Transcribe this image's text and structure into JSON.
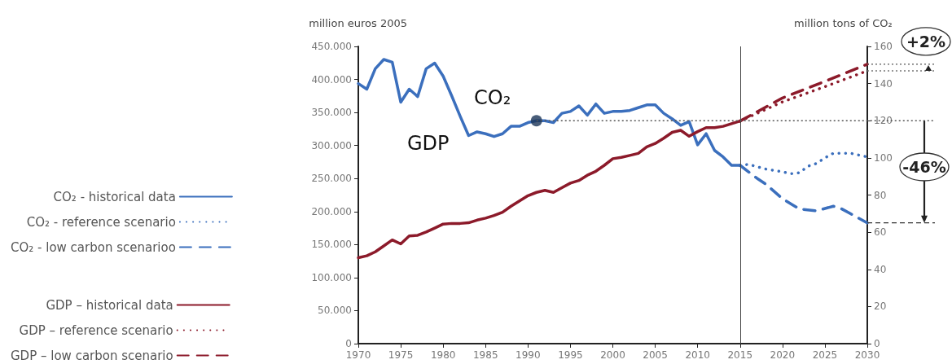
{
  "chart_data": {
    "type": "line",
    "ylabel": "million euros 2005",
    "y2label": "million tons of CO₂",
    "xlim": [
      1970,
      2030
    ],
    "xticks": [
      1970,
      1975,
      1980,
      1985,
      1990,
      1995,
      2000,
      2005,
      2010,
      2015,
      2020,
      2025,
      2030
    ],
    "ylim": [
      0,
      450000
    ],
    "yticks": [
      0,
      {
        "value": 50000,
        "label": "50.000"
      },
      {
        "value": 100000,
        "label": "100.000"
      },
      {
        "value": 150000,
        "label": "150.000"
      },
      {
        "value": 200000,
        "label": "200.000"
      },
      {
        "value": 250000,
        "label": "250.000"
      },
      {
        "value": 300000,
        "label": "300.000"
      },
      {
        "value": 350000,
        "label": "350.000"
      },
      {
        "value": 400000,
        "label": "400.000"
      },
      {
        "value": 450000,
        "label": "450.000"
      }
    ],
    "y2lim": [
      0,
      160
    ],
    "y2ticks": [
      0,
      20,
      40,
      60,
      80,
      100,
      120,
      140,
      160
    ],
    "grid": false,
    "legend": "left",
    "marker": "none",
    "series": [
      {
        "name": "CO₂ - historical data",
        "color": "#3b6fbd",
        "axis": "y2",
        "line_style": "solid",
        "x": [
          1970,
          1971,
          1972,
          1973,
          1974,
          1975,
          1976,
          1977,
          1978,
          1979,
          1980,
          1981,
          1982,
          1983,
          1984,
          1985,
          1986,
          1987,
          1988,
          1989,
          1990,
          1991,
          1992,
          1993,
          1994,
          1995,
          1996,
          1997,
          1998,
          1999,
          2000,
          2001,
          2002,
          2003,
          2004,
          2005,
          2006,
          2007,
          2008,
          2009,
          2010,
          2011,
          2012,
          2013,
          2014,
          2015
        ],
        "values": [
          140,
          137,
          148,
          153,
          151.5,
          130,
          137,
          133,
          148,
          151,
          144,
          133.5,
          122.5,
          112,
          114,
          113,
          111.5,
          113,
          117,
          117,
          119,
          120,
          120,
          119,
          124,
          125,
          128,
          123,
          129,
          124,
          125,
          125,
          125.5,
          127,
          128.5,
          128.5,
          124,
          121,
          117.5,
          119.5,
          107,
          113,
          104,
          100.5,
          96,
          96
        ]
      },
      {
        "name": "CO₂ - reference scenario",
        "color": "#3b6fbd",
        "axis": "y2",
        "line_style": "dotted",
        "x": [
          2015,
          2016,
          2018,
          2020,
          2021,
          2022,
          2023,
          2024,
          2025,
          2026,
          2028,
          2030
        ],
        "values": [
          96,
          96.5,
          94,
          92.5,
          91.5,
          92,
          95.5,
          97,
          100,
          102.5,
          102.5,
          100.5
        ]
      },
      {
        "name": "CO₂ - low carbon scenarioo",
        "color": "#3b6fbd",
        "axis": "y2",
        "line_style": "dashed",
        "x": [
          2015,
          2017,
          2018,
          2020,
          2022,
          2024,
          2026,
          2027,
          2028,
          2030
        ],
        "values": [
          96,
          89,
          86,
          78,
          72.5,
          71.5,
          74,
          72.5,
          70,
          65
        ]
      },
      {
        "name": "GDP – historical data",
        "color": "#8c1a2a",
        "axis": "y",
        "line_style": "solid",
        "x": [
          1970,
          1971,
          1972,
          1973,
          1974,
          1975,
          1976,
          1977,
          1978,
          1979,
          1980,
          1981,
          1982,
          1983,
          1984,
          1985,
          1986,
          1987,
          1988,
          1989,
          1990,
          1991,
          1992,
          1993,
          1994,
          1995,
          1996,
          1997,
          1998,
          1999,
          2000,
          2001,
          2002,
          2003,
          2004,
          2005,
          2006,
          2007,
          2008,
          2009,
          2010,
          2011,
          2012,
          2013,
          2014,
          2015
        ],
        "values": [
          130000,
          133000,
          139000,
          148000,
          157000,
          151000,
          163000,
          164000,
          169000,
          175000,
          181000,
          182000,
          182000,
          183000,
          187000,
          190000,
          194000,
          199000,
          208000,
          216000,
          224000,
          229000,
          232000,
          229000,
          236000,
          243000,
          247000,
          255000,
          261000,
          270000,
          280000,
          282000,
          285000,
          288000,
          298000,
          303000,
          311000,
          320000,
          323000,
          314000,
          321000,
          327000,
          327000,
          329000,
          333000,
          337000
        ]
      },
      {
        "name": "GDP – reference scenario",
        "color": "#8c1a2a",
        "axis": "y",
        "line_style": "dotted",
        "x": [
          2015,
          2020,
          2025,
          2030
        ],
        "values": [
          337000,
          366000,
          389000,
          413000
        ]
      },
      {
        "name": "GDP – low carbon scenario",
        "color": "#8c1a2a",
        "axis": "y",
        "line_style": "dashed",
        "x": [
          2015,
          2020,
          2025,
          2030
        ],
        "values": [
          337000,
          372000,
          397000,
          423000
        ]
      },
      {
        "type": "scatter",
        "color": "#1c3558",
        "axis": "y2",
        "marker": "circle",
        "x": [
          1991
        ],
        "values": [
          120
        ]
      }
    ],
    "ref_lines": [
      {
        "axis": "x",
        "value": 2015,
        "color": "#444444",
        "line_style": "solid"
      },
      {
        "axis": "y2",
        "value": 120,
        "color": "#555555",
        "line_style": "dotted"
      }
    ],
    "annotations": [
      "CO₂",
      "GDP",
      "+2%",
      "-46%"
    ]
  }
}
